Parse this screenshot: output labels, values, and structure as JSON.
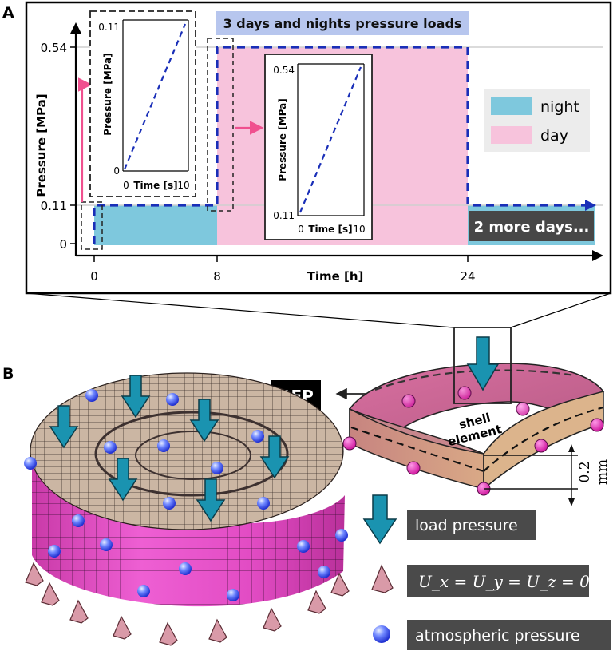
{
  "panel_a": {
    "label": "A",
    "title": "3 days and nights pressure loads",
    "ylabel": "Pressure [MPa]",
    "xlabel": "Time [h]",
    "y_ticks": [
      "0.54",
      "0.11",
      "0"
    ],
    "x_ticks": [
      "0",
      "8",
      "24"
    ],
    "more_days_label": "2 more days...",
    "legend": [
      {
        "label": "night",
        "color": "#7ec8dd"
      },
      {
        "label": "day",
        "color": "#f7c3dc"
      }
    ],
    "inset1": {
      "ylabel": "Pressure [MPa]",
      "xlabel": "Time [s]",
      "y_ticks": [
        "0.11",
        "0"
      ],
      "x_ticks": [
        "0",
        "10"
      ]
    },
    "inset2": {
      "ylabel": "Pressure [MPa]",
      "xlabel": "Time [s]",
      "y_ticks": [
        "0.54",
        "0.11"
      ],
      "x_ticks": [
        "0",
        "10"
      ]
    }
  },
  "chart_data": {
    "type": "line",
    "title": "3 days and nights pressure loads",
    "xlabel": "Time [h]",
    "ylabel": "Pressure [MPa]",
    "x": [
      0,
      0,
      8,
      8,
      24,
      24,
      30
    ],
    "y": [
      0,
      0.11,
      0.11,
      0.54,
      0.54,
      0.11,
      0.11
    ],
    "regions": [
      {
        "label": "night",
        "from": 0,
        "to": 8
      },
      {
        "label": "day",
        "from": 8,
        "to": 24
      },
      {
        "label": "night",
        "from": 24,
        "to": 30
      }
    ]
  },
  "panel_b": {
    "label": "B",
    "bep_label": "BEP",
    "shell_label_1": "shell",
    "shell_label_2": "element",
    "thickness_label": "0.2",
    "thickness_unit": "mm",
    "legend": {
      "load": "load pressure",
      "bc_formula": "U_x = U_y = U_z = 0",
      "atm": "atmospheric pressure"
    }
  },
  "colors": {
    "dashed_line": "#1a2fb8",
    "arrow_pink": "#f0508f",
    "mesh_magenta": "#e64fc8",
    "mesh_top": "#c9b3a0",
    "load_arrow": "#1a93b0",
    "cone": "#d99aa8",
    "legend_box": "#4a4a4a"
  }
}
